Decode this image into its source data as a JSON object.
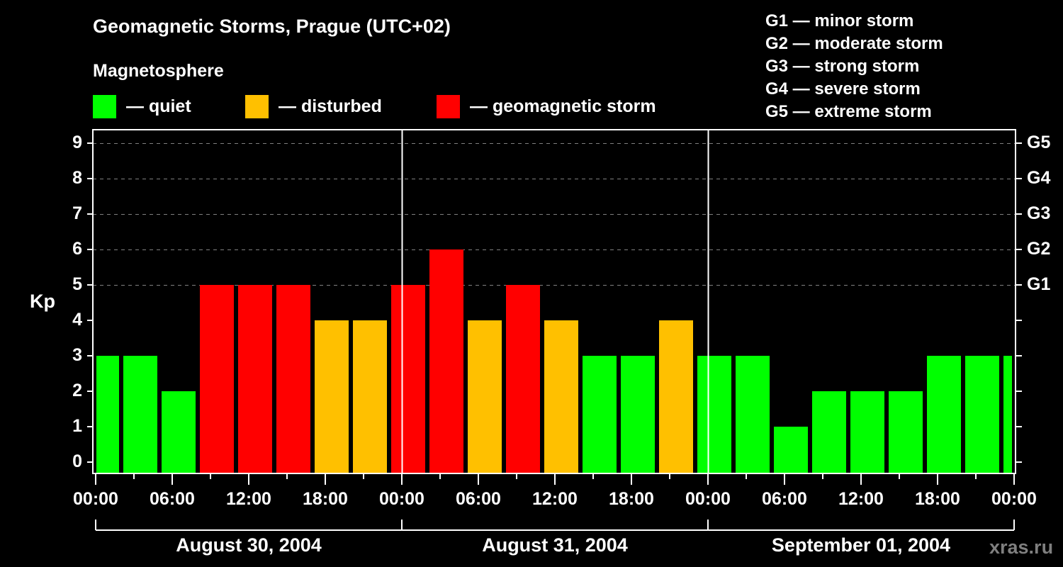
{
  "header": {
    "title": "Geomagnetic Storms, Prague (UTC+02)",
    "subtitle": "Magnetosphere"
  },
  "legend": [
    {
      "label": "— quiet",
      "color": "#00ff00"
    },
    {
      "label": "— disturbed",
      "color": "#ffc000"
    },
    {
      "label": "— geomagnetic storm",
      "color": "#ff0000"
    }
  ],
  "g_scale": [
    {
      "label": "G1 — minor storm"
    },
    {
      "label": "G2 — moderate storm"
    },
    {
      "label": "G3 — strong storm"
    },
    {
      "label": "G4 — severe storm"
    },
    {
      "label": "G5 — extreme storm"
    }
  ],
  "axis": {
    "ylabel": "Kp",
    "y_ticks": [
      "0",
      "1",
      "2",
      "3",
      "4",
      "5",
      "6",
      "7",
      "8",
      "9"
    ],
    "g_ticks": [
      {
        "label": "G1",
        "kp": 5
      },
      {
        "label": "G2",
        "kp": 6
      },
      {
        "label": "G3",
        "kp": 7
      },
      {
        "label": "G4",
        "kp": 8
      },
      {
        "label": "G5",
        "kp": 9
      }
    ],
    "x_ticks": [
      "00:00",
      "06:00",
      "12:00",
      "18:00",
      "00:00",
      "06:00",
      "12:00",
      "18:00",
      "00:00",
      "06:00",
      "12:00",
      "18:00",
      "00:00"
    ],
    "dates": [
      "August 30, 2004",
      "August 31, 2004",
      "September 01, 2004"
    ]
  },
  "watermark": "xras.ru",
  "chart_data": {
    "type": "bar",
    "title": "Geomagnetic Storms, Prague (UTC+02)",
    "xlabel": "",
    "ylabel": "Kp",
    "ylim": [
      0,
      9
    ],
    "grid": "horizontal dashed at Kp 5-9",
    "categories": [
      "Aug30 00:00",
      "Aug30 02:00",
      "Aug30 05:00",
      "Aug30 08:00",
      "Aug30 11:00",
      "Aug30 14:00",
      "Aug30 17:00",
      "Aug30 20:00",
      "Aug30 23:00",
      "Aug31 02:00",
      "Aug31 05:00",
      "Aug31 08:00",
      "Aug31 11:00",
      "Aug31 14:00",
      "Aug31 17:00",
      "Aug31 20:00",
      "Aug31 23:00",
      "Sep01 02:00",
      "Sep01 05:00",
      "Sep01 08:00",
      "Sep01 11:00",
      "Sep01 14:00",
      "Sep01 17:00",
      "Sep01 20:00",
      "Sep01 23:00"
    ],
    "values": [
      3,
      3,
      2,
      5,
      5,
      5,
      4,
      4,
      5,
      6,
      4,
      5,
      4,
      3,
      3,
      4,
      3,
      3,
      1,
      2,
      2,
      2,
      3,
      3,
      3
    ],
    "colors": {
      "quiet": "#00ff00",
      "disturbed": "#ffc000",
      "storm": "#ff0000"
    },
    "legend": [
      "quiet",
      "disturbed",
      "geomagnetic storm"
    ],
    "x_tick_labels": [
      "00:00",
      "06:00",
      "12:00",
      "18:00",
      "00:00",
      "06:00",
      "12:00",
      "18:00",
      "00:00",
      "06:00",
      "12:00",
      "18:00",
      "00:00"
    ],
    "date_labels": [
      "August 30, 2004",
      "August 31, 2004",
      "September 01, 2004"
    ]
  }
}
